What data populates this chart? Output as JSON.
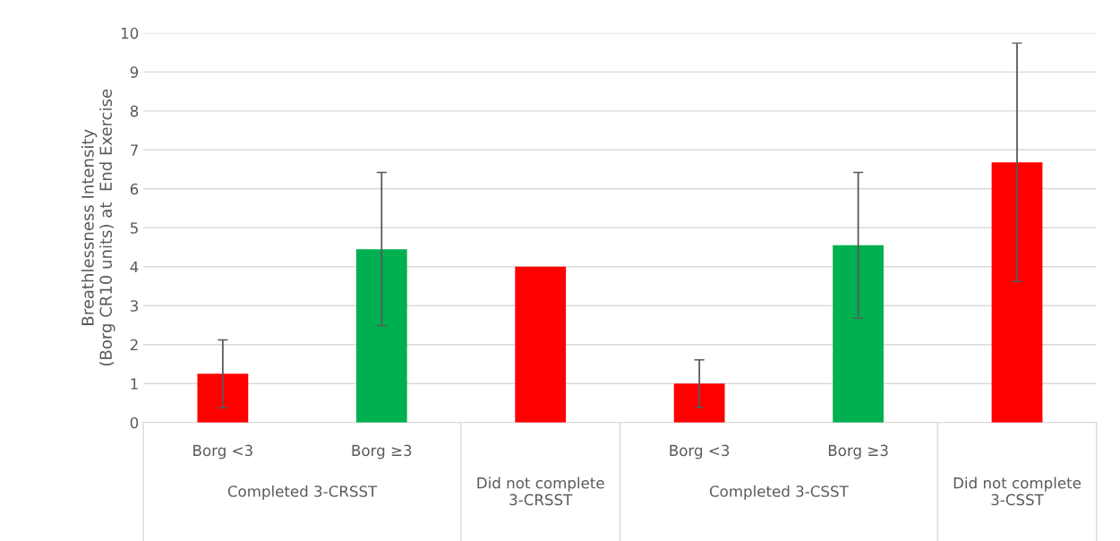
{
  "chart_data": {
    "type": "bar",
    "ylabel": "Breathlessness Intensity\n(Borg CR10 units) at  End Exercise",
    "categories": [
      "Borg <3",
      "Borg ≥3",
      null,
      "Borg <3",
      "Borg ≥3",
      null
    ],
    "values": [
      1.25,
      4.45,
      4.0,
      1.0,
      4.55,
      6.68
    ],
    "colors": [
      "#ff0000",
      "#00b050",
      "#ff0000",
      "#ff0000",
      "#00b050",
      "#ff0000"
    ],
    "errors": [
      0.87,
      1.97,
      null,
      0.61,
      1.87,
      3.06
    ],
    "ylim": [
      0,
      10
    ],
    "yticks": [
      0,
      1,
      2,
      3,
      4,
      5,
      6,
      7,
      8,
      9,
      10
    ],
    "grid": "y",
    "annotations": [
      "Completed 3-CRSST",
      "Did not complete\n3-CRSST",
      "Completed 3-CSST",
      "Did not complete\n3-CSST"
    ]
  }
}
